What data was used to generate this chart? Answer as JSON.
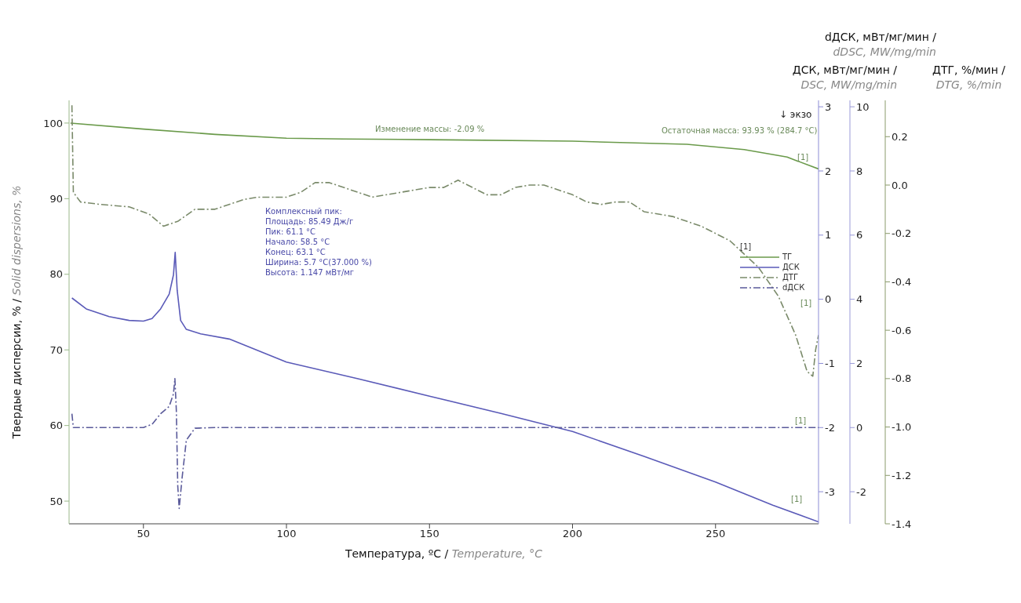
{
  "chart_data": [
    {
      "type": "line",
      "xlabel": "Температура, ºC / Temperature, °C",
      "ylabel": "Твердые дисперсии, % / Solid dispersions, %",
      "y2label": "ДСК, мВт/мг/мин / DSC, MW/mg/min",
      "y3label": "ДТГ, %/мин / DTG, %/min",
      "legend_title": "[1]",
      "xlim": [
        24,
        286
      ],
      "xticks": [
        50,
        100,
        150,
        200,
        250
      ],
      "ylim": [
        47,
        103
      ],
      "yticks": [
        50,
        60,
        70,
        80,
        90,
        100
      ],
      "y2lim": [
        -3.5,
        3.1
      ],
      "y2ticks": [
        -3,
        -2,
        -1,
        0,
        1,
        2,
        3
      ],
      "y3lim": [
        -1.4,
        0.35
      ],
      "y3ticks": [
        -1.4,
        -1.2,
        {
          "value": -1,
          "label": "-1.0"
        },
        -0.8,
        -0.6,
        -0.4,
        -0.2,
        {
          "value": 0,
          "label": "0.0"
        },
        0.2
      ],
      "grid": false,
      "legend": "right",
      "marker": "none",
      "series": [
        {
          "name": "ТГ",
          "color": "#6a9a4a",
          "line_style": "solid",
          "x": [
            24.5,
            50,
            75,
            100,
            120,
            150,
            200,
            240,
            260,
            275,
            286
          ],
          "values": [
            100,
            99.2,
            98.5,
            98,
            97.9,
            97.8,
            97.6,
            97.2,
            96.5,
            95.5,
            93.93
          ]
        },
        {
          "name": "ДСК",
          "color": "#5a5ab8",
          "line_style": "solid",
          "axis": "y2",
          "x": [
            25,
            30,
            38,
            45,
            50,
            53,
            56,
            59,
            60.5,
            61.1,
            61.8,
            63,
            65,
            70,
            80,
            100,
            125,
            150,
            175,
            200,
            225,
            250,
            270,
            286
          ],
          "values": [
            0.02,
            -0.15,
            -0.27,
            -0.33,
            -0.34,
            -0.3,
            -0.15,
            0.08,
            0.38,
            0.73,
            0.14,
            -0.33,
            -0.47,
            -0.54,
            -0.62,
            -0.98,
            -1.24,
            -1.51,
            -1.78,
            -2.06,
            -2.45,
            -2.85,
            -3.21,
            -3.47
          ]
        },
        {
          "name": "ДТГ",
          "color": "#7a8a6a",
          "line_style": "dashed",
          "axis": "y3",
          "x": [
            25,
            25.5,
            28,
            35,
            45,
            52,
            57,
            62,
            68,
            75,
            85,
            90,
            100,
            105,
            110,
            115,
            120,
            125,
            130,
            140,
            150,
            155,
            160,
            165,
            170,
            175,
            180,
            185,
            190,
            200,
            205,
            210,
            215,
            220,
            225,
            235,
            245,
            255,
            265,
            272,
            278,
            282,
            284,
            285,
            286
          ],
          "values": [
            0.33,
            -0.03,
            -0.07,
            -0.08,
            -0.09,
            -0.12,
            -0.17,
            -0.15,
            -0.1,
            -0.1,
            -0.06,
            -0.05,
            -0.05,
            -0.03,
            0.01,
            0.01,
            -0.01,
            -0.03,
            -0.05,
            -0.03,
            -0.01,
            -0.01,
            0.02,
            -0.01,
            -0.04,
            -0.04,
            -0.01,
            0.0,
            0.0,
            -0.04,
            -0.07,
            -0.08,
            -0.07,
            -0.07,
            -0.11,
            -0.13,
            -0.17,
            -0.23,
            -0.34,
            -0.46,
            -0.62,
            -0.77,
            -0.79,
            -0.68,
            -0.62
          ]
        }
      ],
      "annotations": [
        "↓ экзо",
        "Изменение массы: -2.09 %",
        "Остаточная масса: 93.93 % (284.7 °C)",
        "Комплексный пик:\nПлощадь: 85.49 Дж/г\nПик: 61.1 °C\nНачало: 58.5 °C\nКонец: 63.1 °C\nШирина: 5.7 °C(37.000 %)\nВысота: 1.147 мВт/мг",
        "[1]",
        "[1]",
        "[1]",
        "[1]"
      ]
    },
    {
      "type": "line",
      "ylabel": "dДСК, мВт/мг/мин / dDSC, MW/mg/min",
      "xlim": [
        24,
        286
      ],
      "ylim": [
        -3,
        10.2
      ],
      "yticks": [
        -2,
        0,
        2,
        4,
        6,
        8,
        10
      ],
      "tick_labels": "y",
      "legend": "right",
      "marker": "none",
      "series": [
        {
          "name": "dДСК",
          "color": "#5a5a9a",
          "line_style": "dashed",
          "x": [
            25,
            25.5,
            30,
            50,
            53,
            56,
            59,
            60.5,
            61,
            61.5,
            62,
            62.5,
            63.5,
            65,
            68,
            75,
            286
          ],
          "values": [
            0.43,
            0,
            0,
            0,
            0.1,
            0.43,
            0.66,
            1.05,
            1.53,
            0.54,
            -1.82,
            -2.52,
            -1.58,
            -0.39,
            -0.02,
            0,
            0
          ]
        }
      ]
    }
  ]
}
